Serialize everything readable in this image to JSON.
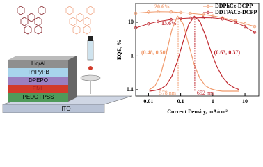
{
  "chart_data": [
    {
      "type": "line",
      "xlabel": "Current Density, mA/cm²",
      "ylabel": "EQE, %",
      "xscale": "log",
      "yscale": "log",
      "x": [
        0.004,
        0.01,
        0.02,
        0.05,
        0.1,
        0.2,
        0.5,
        1,
        2,
        5,
        10,
        20
      ],
      "series": [
        {
          "name": "DDPhCz-DCPP",
          "color": "#f09a6c",
          "values": [
            18.6,
            20,
            20.6,
            20.3,
            19.5,
            18.5,
            17,
            15.5,
            13.5,
            11,
            9,
            7.5
          ]
        },
        {
          "name": "DDTPACz-DCPP",
          "color": "#c0282f",
          "values": [
            6.8,
            9,
            10.5,
            12,
            12.8,
            13.3,
            13.6,
            13.4,
            12.5,
            10,
            7.5,
            5
          ]
        }
      ],
      "xlim": [
        0.004,
        27
      ],
      "ylim": [
        0.065,
        36
      ],
      "xticks": [
        0.01,
        0.1,
        1,
        10
      ],
      "yticks": [
        0.1,
        1,
        10
      ],
      "annotations": [
        "20.6%",
        "13.6%"
      ],
      "legend": "upper-right"
    },
    {
      "type": "line",
      "x": [
        450,
        475,
        500,
        525,
        550,
        575,
        600,
        625,
        650,
        675,
        700,
        725,
        750,
        775,
        800,
        825,
        850
      ],
      "series": [
        {
          "name": "DDPhCz-DCPP",
          "color": "#f09a6c",
          "values": [
            0.02,
            0.07,
            0.22,
            0.5,
            0.82,
            1,
            0.9,
            0.62,
            0.35,
            0.17,
            0.07,
            0.03,
            0.01,
            0,
            0,
            0,
            0
          ]
        },
        {
          "name": "DDTPACz-DCPP",
          "color": "#c0282f",
          "values": [
            0,
            0.01,
            0.03,
            0.08,
            0.2,
            0.4,
            0.66,
            0.89,
            1,
            0.93,
            0.74,
            0.52,
            0.33,
            0.19,
            0.1,
            0.05,
            0.02
          ]
        }
      ],
      "xlim": [
        420,
        900
      ],
      "ylim": [
        0,
        1.05
      ],
      "peaks": [
        {
          "value": 578,
          "label": "578 nm"
        },
        {
          "value": 652,
          "label": "652 nm"
        }
      ],
      "cie": [
        "(0.48, 0.50)",
        "(0.63, 0.37)"
      ]
    }
  ],
  "device": {
    "layers": [
      "Liq/Al",
      "TmPyPB",
      "DPEPO",
      "EML",
      "PEDOT:PSS",
      "ITO"
    ]
  }
}
